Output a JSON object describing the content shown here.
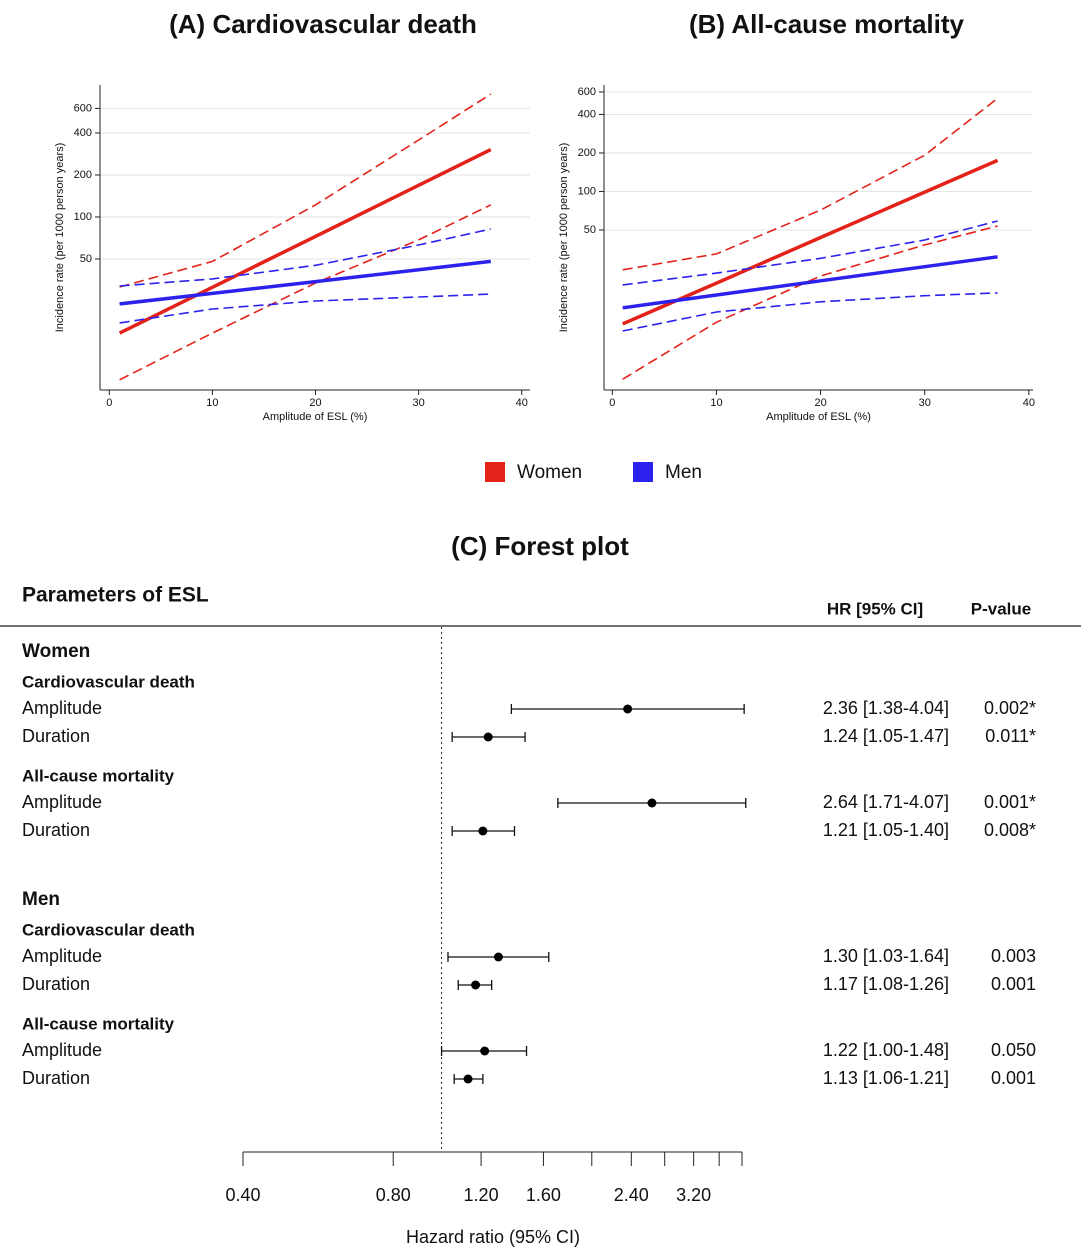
{
  "chart_data": [
    {
      "type": "line",
      "title": "(A) Cardiovascular death",
      "x_label": "Amplitude of ESL (%)",
      "y_label": "Incidence rate (per 1000 person years)",
      "y_scale": "log",
      "grid": true,
      "xlim": [
        -0.9,
        40.8
      ],
      "xticks": [
        0,
        10,
        20,
        30,
        40
      ],
      "ylim": [
        5.75,
        883
      ],
      "yticks": [
        50,
        100,
        200,
        400,
        600
      ],
      "x": [
        1,
        10,
        20,
        30,
        37
      ],
      "series": [
        {
          "name": "Women",
          "color": "#e32219",
          "values": [
            14.7,
            31.3,
            72.6,
            168.6,
            304
          ],
          "lower": [
            6.8,
            14.7,
            33.6,
            68.5,
            122
          ],
          "upper": [
            31.5,
            48,
            122,
            356,
            760
          ]
        },
        {
          "name": "Men",
          "color": "#2b22ee",
          "values": [
            23.8,
            28.3,
            34.4,
            41.8,
            48
          ],
          "lower": [
            17.4,
            21.9,
            25,
            26.7,
            28
          ],
          "upper": [
            32,
            36,
            45,
            63,
            82
          ]
        }
      ]
    },
    {
      "type": "line",
      "title": "(B) All-cause mortality",
      "x_label": "Amplitude of ESL (%)",
      "y_label": "Incidence rate (per 1000 person years)",
      "y_scale": "log",
      "grid": true,
      "xlim": [
        -0.8,
        40.4
      ],
      "xticks": [
        0,
        10,
        20,
        30,
        40
      ],
      "ylim": [
        2.8,
        680
      ],
      "yticks": [
        50,
        100,
        200,
        400,
        600
      ],
      "x": [
        1,
        10,
        20,
        30,
        37
      ],
      "series": [
        {
          "color": "#e32219",
          "values": [
            9.2,
            19.2,
            43.6,
            98.9,
            175
          ],
          "lower": [
            3.4,
            9.5,
            21.8,
            38.2,
            53.7
          ],
          "upper": [
            24.4,
            32.5,
            71.5,
            192,
            535
          ]
        },
        {
          "color": "#2b22ee",
          "values": [
            12.3,
            15.5,
            20,
            25.8,
            30.8
          ],
          "lower": [
            8.1,
            11.4,
            13.7,
            15.3,
            16.1
          ],
          "upper": [
            18.6,
            23,
            30,
            41.7,
            58.7
          ]
        }
      ]
    },
    {
      "type": "forest",
      "title": "(C) Forest plot",
      "parameters_header": "Parameters of ESL",
      "hr_header": "HR [95% CI]",
      "p_header": "P-value",
      "x_label": "Hazard ratio (95% CI)",
      "x_scale": "log",
      "xlim": [
        0.4,
        4.0
      ],
      "reference_line": 1,
      "xticks": [
        {
          "value": 0.4,
          "label": "0.40"
        },
        {
          "value": 0.8,
          "label": "0.80"
        },
        {
          "value": 1.2,
          "label": "1.20"
        },
        {
          "value": 1.6,
          "label": "1.60"
        },
        {
          "value": 2.4,
          "label": "2.40"
        },
        {
          "value": 3.2,
          "label": "3.20"
        }
      ],
      "xminor_ticks": [
        2.0,
        2.8,
        3.6,
        4.0
      ],
      "groups": [
        {
          "name": "Women",
          "outcomes": [
            {
              "name": "Cardiovascular death",
              "rows": [
                {
                  "parameter": "Amplitude",
                  "hr": 2.36,
                  "ci": [
                    1.38,
                    4.04
                  ],
                  "hr_label": "2.36 [1.38-4.04]",
                  "p_value": "0.002*"
                },
                {
                  "parameter": "Duration",
                  "hr": 1.24,
                  "ci": [
                    1.05,
                    1.47
                  ],
                  "hr_label": "1.24 [1.05-1.47]",
                  "p_value": "0.011*"
                }
              ]
            },
            {
              "name": "All-cause mortality",
              "rows": [
                {
                  "parameter": "Amplitude",
                  "hr": 2.64,
                  "ci": [
                    1.71,
                    4.07
                  ],
                  "hr_label": "2.64 [1.71-4.07]",
                  "p_value": "0.001*"
                },
                {
                  "parameter": "Duration",
                  "hr": 1.21,
                  "ci": [
                    1.05,
                    1.4
                  ],
                  "hr_label": "1.21 [1.05-1.40]",
                  "p_value": "0.008*"
                }
              ]
            }
          ]
        },
        {
          "name": "Men",
          "outcomes": [
            {
              "name": "Cardiovascular death",
              "rows": [
                {
                  "parameter": "Amplitude",
                  "hr": 1.3,
                  "ci": [
                    1.03,
                    1.64
                  ],
                  "hr_label": "1.30 [1.03-1.64]",
                  "p_value": "0.003"
                },
                {
                  "parameter": "Duration",
                  "hr": 1.17,
                  "ci": [
                    1.08,
                    1.26
                  ],
                  "hr_label": "1.17 [1.08-1.26]",
                  "p_value": "0.001"
                }
              ]
            },
            {
              "name": "All-cause mortality",
              "rows": [
                {
                  "parameter": "Amplitude",
                  "hr": 1.22,
                  "ci": [
                    1.0,
                    1.48
                  ],
                  "hr_label": "1.22 [1.00-1.48]",
                  "p_value": "0.050"
                },
                {
                  "parameter": "Duration",
                  "hr": 1.13,
                  "ci": [
                    1.06,
                    1.21
                  ],
                  "hr_label": "1.13 [1.06-1.21]",
                  "p_value": "0.001"
                }
              ]
            }
          ]
        }
      ]
    }
  ]
}
